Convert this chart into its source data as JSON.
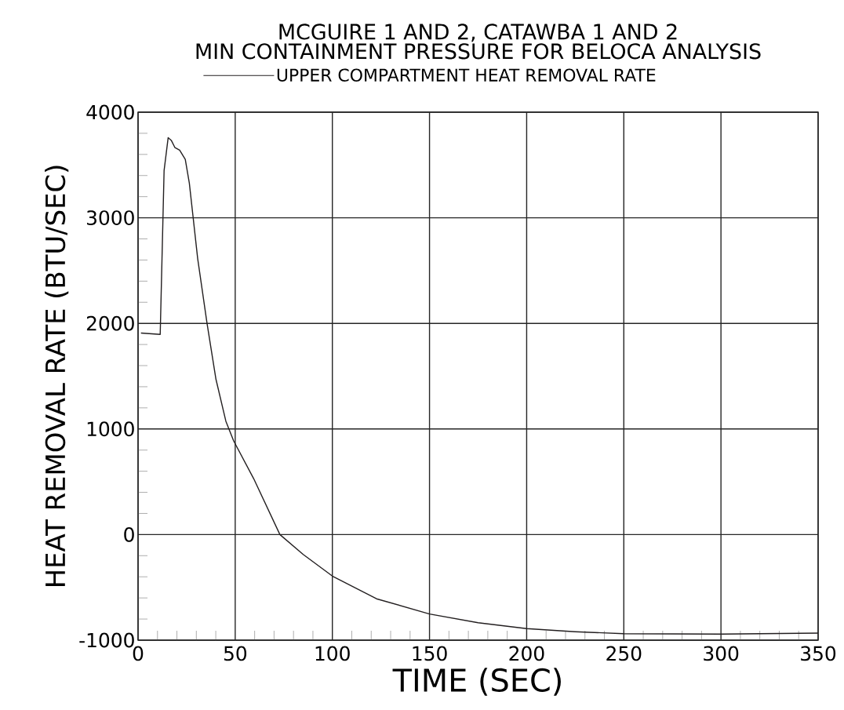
{
  "chart_data": {
    "type": "line",
    "title": "MCGUIRE 1 AND 2, CATAWBA 1 AND 2",
    "subtitle": "MIN CONTAINMENT PRESSURE FOR BELOCA ANALYSIS",
    "xlabel": "TIME (SEC)",
    "ylabel": "HEAT REMOVAL RATE (BTU/SEC)",
    "series": [
      {
        "name": "UPPER COMPARTMENT HEAT REMOVAL RATE",
        "color": "#231f20",
        "x": [
          1.5,
          11.4,
          13.4,
          15.5,
          17.1,
          19.0,
          21.4,
          24.3,
          26.4,
          30.7,
          35.5,
          40.1,
          45.2,
          49.2,
          59.5,
          73,
          85,
          100,
          122.7,
          150,
          175,
          200,
          225,
          250,
          300,
          350
        ],
        "values": [
          1908,
          1895,
          3447,
          3759,
          3733,
          3664,
          3640,
          3553,
          3327,
          2611,
          2001,
          1470,
          1073,
          887,
          530,
          0,
          -188,
          -393,
          -608,
          -752,
          -835,
          -891,
          -920,
          -939,
          -943,
          -933
        ]
      }
    ],
    "xlim": [
      0,
      350
    ],
    "ylim": [
      -1000,
      4000
    ],
    "xticks": [
      0,
      50,
      100,
      150,
      200,
      250,
      300,
      350
    ],
    "yticks": [
      -1000,
      0,
      1000,
      2000,
      3000,
      4000
    ],
    "grid": true,
    "legend": "top",
    "marker": "none",
    "line_style": "solid"
  }
}
